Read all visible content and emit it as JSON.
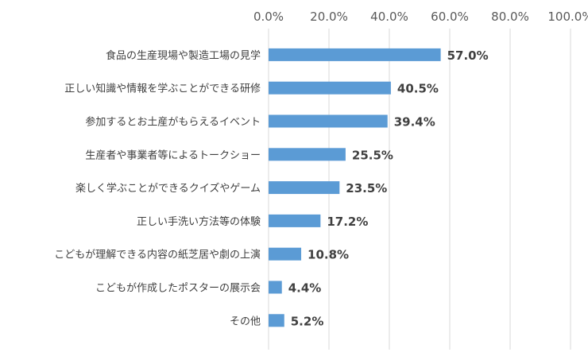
{
  "chart_data": {
    "type": "bar",
    "orientation": "horizontal",
    "title": "",
    "xlabel": "",
    "ylabel": "",
    "xlim": [
      0,
      100
    ],
    "ticks": [
      "0.0%",
      "20.0%",
      "40.0%",
      "60.0%",
      "80.0%",
      "100.0%"
    ],
    "tick_values": [
      0,
      20,
      40,
      60,
      80,
      100
    ],
    "grid": true,
    "axis_position": "top",
    "bar_color": "#5b9bd5",
    "categories": [
      "食品の生産現場や製造工場の見学",
      "正しい知識や情報を学ぶことができる研修",
      "参加するとお土産がもらえるイベント",
      "生産者や事業者等によるトークショー",
      "楽しく学ぶことができるクイズやゲーム",
      "正しい手洗い方法等の体験",
      "こどもが理解できる内容の紙芝居や劇の上演",
      "こどもが作成したポスターの展示会",
      "その他"
    ],
    "values": [
      57.0,
      40.5,
      39.4,
      25.5,
      23.5,
      17.2,
      10.8,
      4.4,
      5.2
    ],
    "value_labels": [
      "57.0%",
      "40.5%",
      "39.4%",
      "25.5%",
      "23.5%",
      "17.2%",
      "10.8%",
      "4.4%",
      "5.2%"
    ]
  }
}
